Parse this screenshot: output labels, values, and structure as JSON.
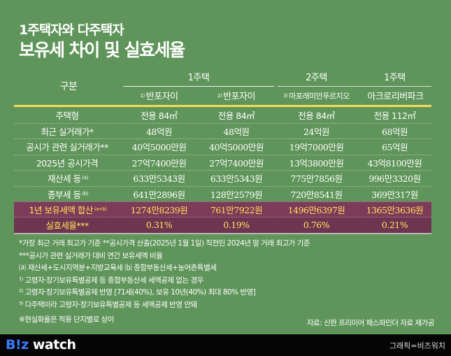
{
  "title": {
    "line1": "1주택자와 다주택자",
    "line2": "보유세 차이 및 실효세율"
  },
  "table": {
    "header_label": "구분",
    "groups": [
      "1주택",
      "2주택",
      "1주택"
    ],
    "columns": [
      {
        "sup": "1)",
        "name": "반포자이"
      },
      {
        "sup": "2)",
        "name": "반포자이"
      },
      {
        "sup": "3)",
        "name": "마포래미안푸르지오"
      },
      {
        "sup": "",
        "name": "아크로리버파크"
      }
    ],
    "rows": [
      {
        "label": "주택형",
        "sup": "",
        "values": [
          "전용 84㎡",
          "전용 84㎡",
          "전용 84㎡",
          "전용 112㎡"
        ]
      },
      {
        "label": "최근 실거래가*",
        "sup": "",
        "values": [
          "48억원",
          "48억원",
          "24억원",
          "68억원"
        ]
      },
      {
        "label": "공시가 관련 실거래가**",
        "sup": "",
        "values": [
          "40억5000만원",
          "40억5000만원",
          "19억7000만원",
          "65억원"
        ]
      },
      {
        "label": "2025년 공시가격",
        "sup": "",
        "values": [
          "27억7400만원",
          "27억7400만원",
          "13억3800만원",
          "43억8100만원"
        ]
      },
      {
        "label": "재산세 등",
        "sup": "(a)",
        "values": [
          "633만5343원",
          "633만5343원",
          "775만7856원",
          "996만3320원"
        ]
      },
      {
        "label": "종부세 등",
        "sup": "(b)",
        "values": [
          "641만2896원",
          "128만2579원",
          "720만8541원",
          "369만317원"
        ]
      },
      {
        "label": "1년 보유세액 합산",
        "sup": "(a+b)",
        "values": [
          "1274만8239원",
          "761만7922원",
          "1496만6397원",
          "1365만3636원"
        ]
      },
      {
        "label": "실효세율***",
        "sup": "",
        "values": [
          "0.31%",
          "0.19%",
          "0.76%",
          "0.21%"
        ]
      }
    ]
  },
  "notes": [
    "*가장 최근 거래 최고가 기준   **공시가격 산출(2025년 1월 1일) 직전인 2024년 말 거래 최고가 기준",
    "***공시가 관련 실거래가 대비 연간 보유세액 비율",
    "⒜ 재산세+도시지역분+지방교육세  ⒝ 종합부동산세+농어촌특별세",
    "¹⁾ 고령자·장기보유특별공제 등 종합부동산세 세액공제 없는 경우",
    "²⁾ 고령자·장기보유특별공제 반영 [71세(40%), 보유 10년(40%) 최대 80% 반영]",
    "³⁾ 다주택이라 고령자·장기보유특별공제 등 세액공제 반영 안돼",
    "※현실화율은 적용 단지별로 상이"
  ],
  "source": "자료: 신한 프리미어 패스파인더 자료 재가공",
  "footer": {
    "logo_b": "B",
    "logo_iz": "!z",
    "logo_watch": " watch",
    "credit": "그래픽=비즈워치"
  },
  "colors": {
    "background": "#5f955a",
    "column": "#3e6b3b",
    "highlight_row": "#7c3b58",
    "highlight_text": "#ffe35a",
    "divider": "#f2dc5a"
  }
}
